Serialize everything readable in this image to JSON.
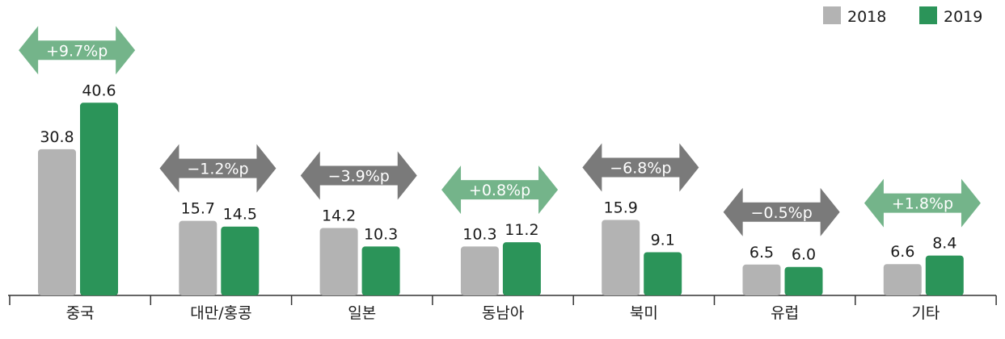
{
  "chart_data": {
    "type": "bar",
    "categories": [
      "중국",
      "대만/홍콩",
      "일본",
      "동남아",
      "북미",
      "유럽",
      "기타"
    ],
    "series": [
      {
        "name": "2018",
        "values": [
          30.8,
          15.7,
          14.2,
          10.3,
          15.9,
          6.5,
          6.6
        ],
        "color": "#b3b3b3"
      },
      {
        "name": "2019",
        "values": [
          40.6,
          14.5,
          10.3,
          11.2,
          9.1,
          6.0,
          8.4
        ],
        "color": "#2b9459"
      }
    ],
    "data_labels": [
      [
        "30.8",
        "15.7",
        "14.2",
        "10.3",
        "15.9",
        "6.5",
        "6.6"
      ],
      [
        "40.6",
        "14.5",
        "10.3",
        "11.2",
        "9.1",
        "6.0",
        "8.4"
      ]
    ],
    "changes": [
      "+9.7%p",
      "−1.2%p",
      "−3.9%p",
      "+0.8%p",
      "−6.8%p",
      "−0.5%p",
      "+1.8%p"
    ],
    "change_direction": [
      "up",
      "down",
      "down",
      "up",
      "down",
      "down",
      "up"
    ],
    "colors": {
      "increase_arrow": "#74b48a",
      "decrease_arrow": "#7a7a7a",
      "axis": "#333333"
    },
    "legend_position": "top-right",
    "ylim": [
      0,
      45
    ],
    "grid": false
  }
}
